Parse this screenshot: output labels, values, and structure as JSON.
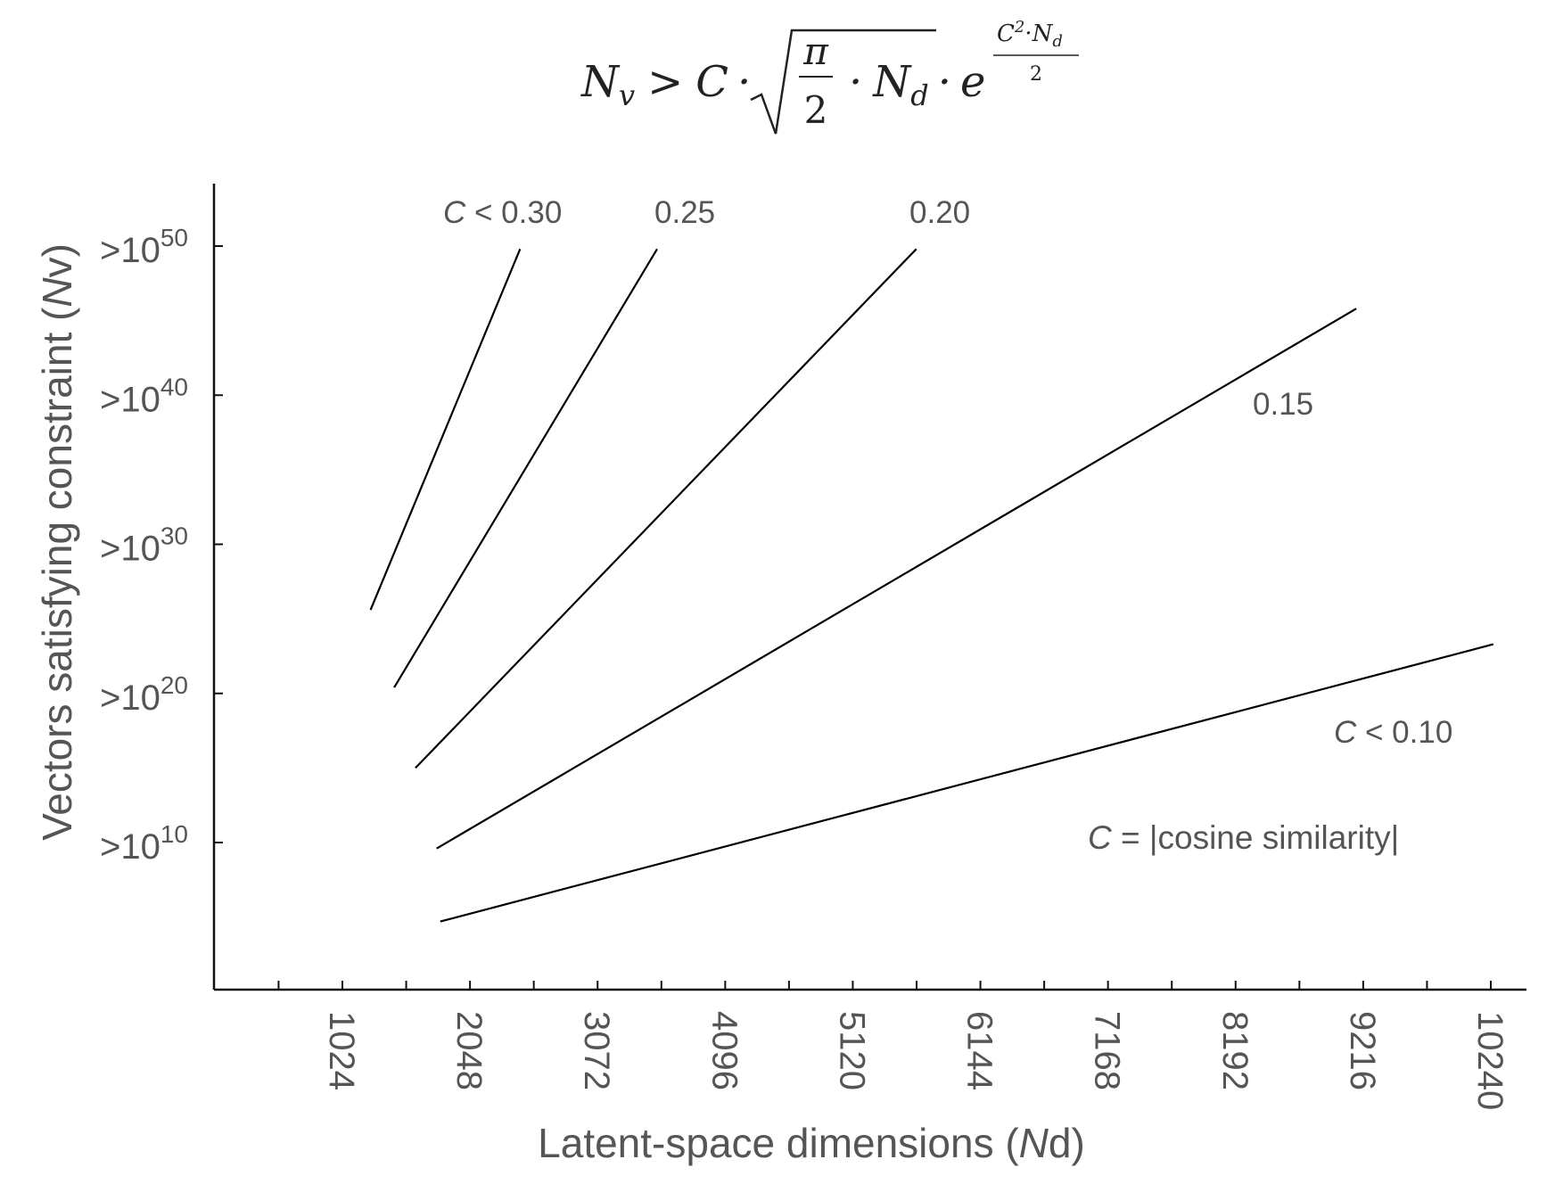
{
  "formula": {
    "lhs": "N",
    "lhs_sub": "v",
    "op": ">",
    "c": "C",
    "dot": "·",
    "pi": "π",
    "two": "2",
    "nd": "N",
    "nd_sub": "d",
    "e": "e",
    "exp_num_c": "C",
    "exp_num_sup": "2",
    "exp_num_n": "N",
    "exp_num_sub": "d",
    "exp_den": "2"
  },
  "chart_data": {
    "type": "line",
    "title": "",
    "xlabel": "Latent-space dimensions (Nd)",
    "xlabel_main": "Latent-space dimensions (",
    "xlabel_italic": "N",
    "xlabel_sub": "d",
    "xlabel_close": ")",
    "ylabel": "Vectors satisfying constraint (Nv)",
    "ylabel_main": "Vectors satisfying constraint (",
    "ylabel_italic": "N",
    "ylabel_sub": "v",
    "ylabel_close": ")",
    "xlim": [
      0,
      10600
    ],
    "ylim_log10": [
      0,
      54
    ],
    "y_scale": "log",
    "grid": false,
    "x_ticks": [
      "1024",
      "2048",
      "3072",
      "4096",
      "5120",
      "6144",
      "7168",
      "8192",
      "9216",
      "10240"
    ],
    "x_tick_values": [
      1024,
      2048,
      3072,
      4096,
      5120,
      6144,
      7168,
      8192,
      9216,
      10240
    ],
    "x_minor_tick_values": [
      512,
      1536,
      2560,
      3584,
      4608,
      5632,
      6656,
      7680,
      8704,
      9728
    ],
    "y_ticks": [
      {
        "value_log10": 10,
        "prefix": ">10",
        "exp": "10"
      },
      {
        "value_log10": 20,
        "prefix": ">10",
        "exp": "20"
      },
      {
        "value_log10": 30,
        "prefix": ">10",
        "exp": "30"
      },
      {
        "value_log10": 40,
        "prefix": ">10",
        "exp": "40"
      },
      {
        "value_log10": 50,
        "prefix": ">10",
        "exp": "50"
      }
    ],
    "series": [
      {
        "label": "0.30",
        "label_prefix": "C",
        "label_op": " < ",
        "x": [
          1250,
          2450
        ],
        "y_log10": [
          25.6,
          49.8
        ]
      },
      {
        "label": "0.25",
        "x": [
          1440,
          3550
        ],
        "y_log10": [
          20.4,
          49.8
        ]
      },
      {
        "label": "0.20",
        "x": [
          1610,
          5630
        ],
        "y_log10": [
          15.0,
          49.8
        ]
      },
      {
        "label": "0.15",
        "x": [
          1780,
          9160
        ],
        "y_log10": [
          9.6,
          45.8
        ]
      },
      {
        "label": "0.10",
        "label_prefix": "C",
        "label_op": " < ",
        "x": [
          1810,
          10260
        ],
        "y_log10": [
          4.7,
          23.3
        ]
      }
    ],
    "annotation": {
      "c": "C",
      "eq": " = |cosine similarity|"
    }
  }
}
